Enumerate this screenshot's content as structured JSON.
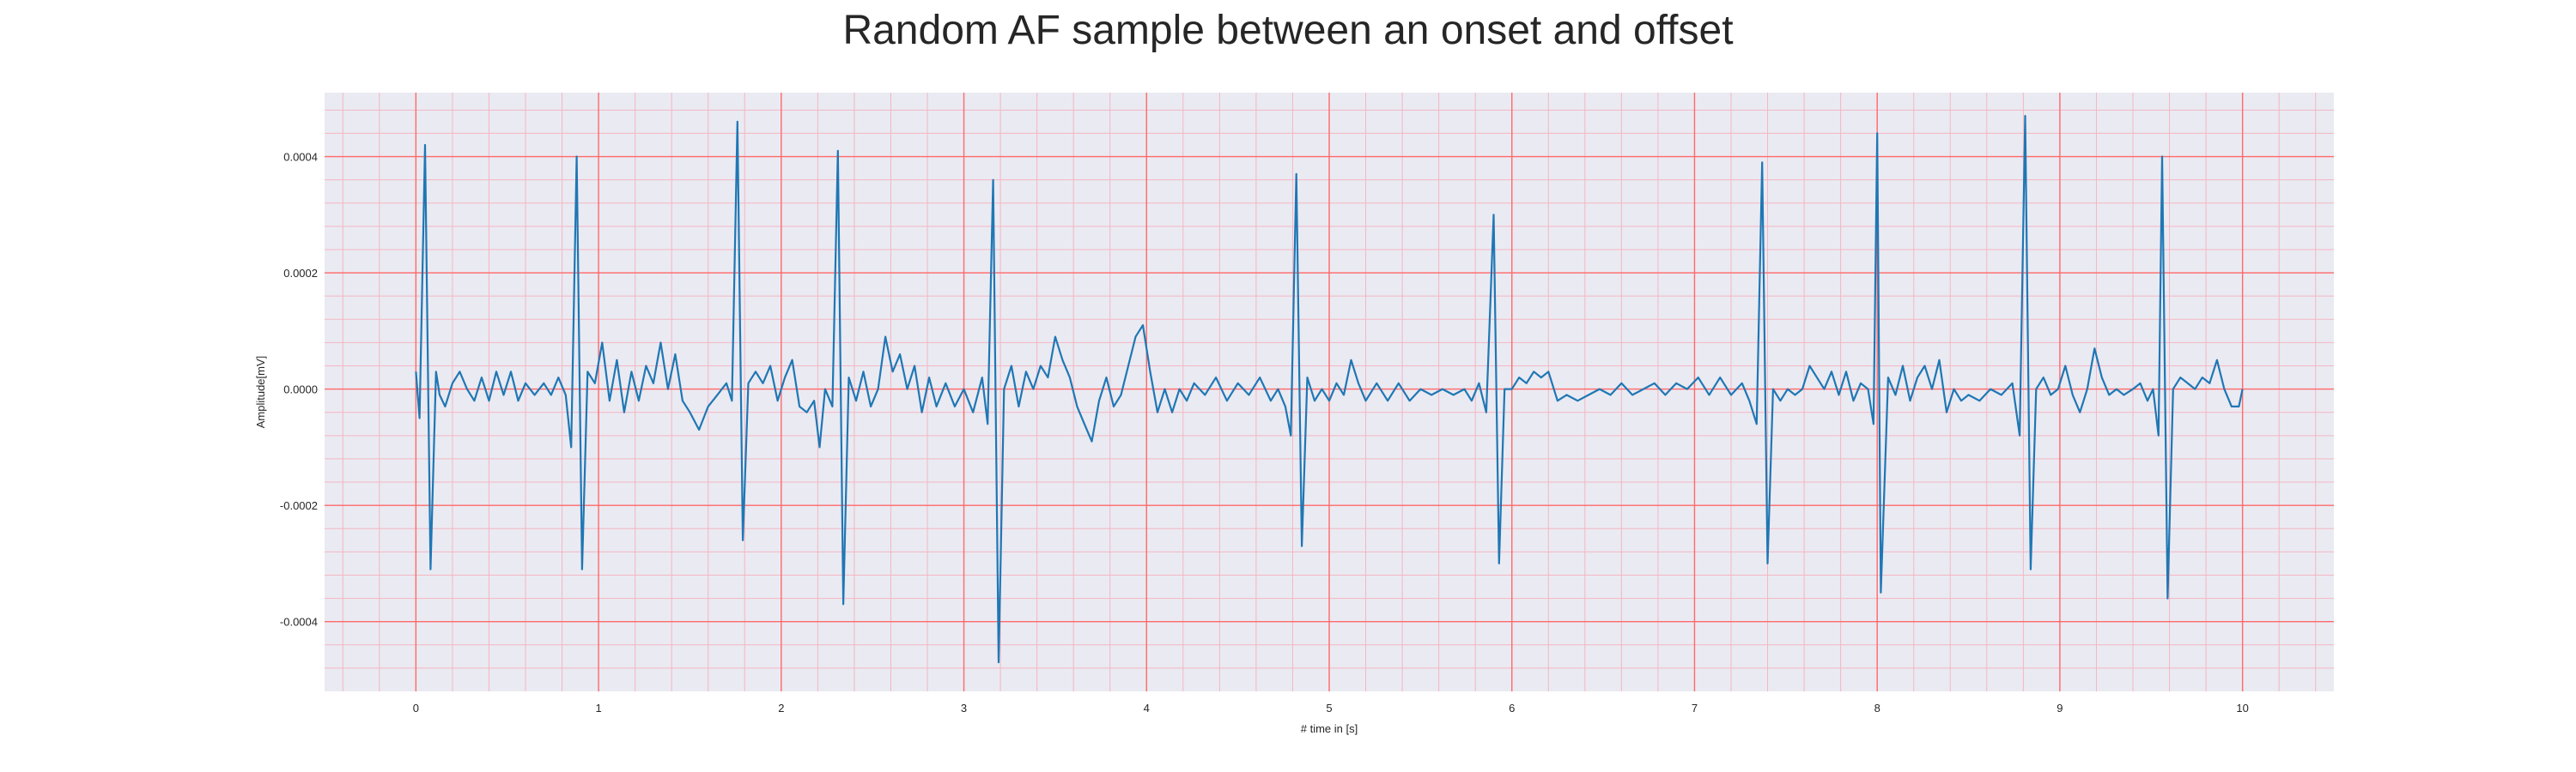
{
  "chart_data": {
    "type": "line",
    "title": "Random AF sample between an onset and offset",
    "xlabel": "# time in [s]",
    "ylabel": "Amplitude[mV]",
    "xlim": [
      -0.5,
      10.5
    ],
    "ylim": [
      -0.00052,
      0.00051
    ],
    "xticks": [
      0,
      1,
      2,
      3,
      4,
      5,
      6,
      7,
      8,
      9,
      10
    ],
    "xtick_labels": [
      "0",
      "1",
      "2",
      "3",
      "4",
      "5",
      "6",
      "7",
      "8",
      "9",
      "10"
    ],
    "yticks": [
      0.0004,
      0.0002,
      0.0,
      -0.0002,
      -0.0004
    ],
    "ytick_labels": [
      "0.0004",
      "0.0002",
      "0.0000",
      "-0.0002",
      "-0.0004"
    ],
    "grid": true,
    "minor_grid": true,
    "colors": {
      "background": "#eaeaf2",
      "major_grid": "#ff6a6a",
      "minor_grid": "#f4b6c2",
      "line": "#1f77b4"
    },
    "series": [
      {
        "points": [
          [
            0.0,
            3e-05
          ],
          [
            0.02,
            -5e-05
          ],
          [
            0.05,
            0.00042
          ],
          [
            0.08,
            -0.00031
          ],
          [
            0.11,
            3e-05
          ],
          [
            0.13,
            -1e-05
          ],
          [
            0.16,
            -3e-05
          ],
          [
            0.2,
            1e-05
          ],
          [
            0.24,
            3e-05
          ],
          [
            0.28,
            0.0
          ],
          [
            0.32,
            -2e-05
          ],
          [
            0.36,
            2e-05
          ],
          [
            0.4,
            -2e-05
          ],
          [
            0.44,
            3e-05
          ],
          [
            0.48,
            -1e-05
          ],
          [
            0.52,
            3e-05
          ],
          [
            0.56,
            -2e-05
          ],
          [
            0.6,
            1e-05
          ],
          [
            0.65,
            -1e-05
          ],
          [
            0.7,
            1e-05
          ],
          [
            0.74,
            -1e-05
          ],
          [
            0.78,
            2e-05
          ],
          [
            0.82,
            -1e-05
          ],
          [
            0.85,
            -0.0001
          ],
          [
            0.88,
            0.0004
          ],
          [
            0.91,
            -0.00031
          ],
          [
            0.94,
            3e-05
          ],
          [
            0.98,
            1e-05
          ],
          [
            1.02,
            8e-05
          ],
          [
            1.06,
            -2e-05
          ],
          [
            1.1,
            5e-05
          ],
          [
            1.14,
            -4e-05
          ],
          [
            1.18,
            3e-05
          ],
          [
            1.22,
            -2e-05
          ],
          [
            1.26,
            4e-05
          ],
          [
            1.3,
            1e-05
          ],
          [
            1.34,
            8e-05
          ],
          [
            1.38,
            0.0
          ],
          [
            1.42,
            6e-05
          ],
          [
            1.46,
            -2e-05
          ],
          [
            1.5,
            -4e-05
          ],
          [
            1.55,
            -7e-05
          ],
          [
            1.6,
            -3e-05
          ],
          [
            1.65,
            -1e-05
          ],
          [
            1.7,
            1e-05
          ],
          [
            1.73,
            -2e-05
          ],
          [
            1.76,
            0.00046
          ],
          [
            1.79,
            -0.00026
          ],
          [
            1.82,
            1e-05
          ],
          [
            1.86,
            3e-05
          ],
          [
            1.9,
            1e-05
          ],
          [
            1.94,
            4e-05
          ],
          [
            1.98,
            -2e-05
          ],
          [
            2.02,
            2e-05
          ],
          [
            2.06,
            5e-05
          ],
          [
            2.1,
            -3e-05
          ],
          [
            2.14,
            -4e-05
          ],
          [
            2.18,
            -2e-05
          ],
          [
            2.21,
            -0.0001
          ],
          [
            2.24,
            0.0
          ],
          [
            2.28,
            -3e-05
          ],
          [
            2.31,
            0.00041
          ],
          [
            2.34,
            -0.00037
          ],
          [
            2.37,
            2e-05
          ],
          [
            2.41,
            -2e-05
          ],
          [
            2.45,
            3e-05
          ],
          [
            2.49,
            -3e-05
          ],
          [
            2.53,
            0.0
          ],
          [
            2.57,
            9e-05
          ],
          [
            2.61,
            3e-05
          ],
          [
            2.65,
            6e-05
          ],
          [
            2.69,
            0.0
          ],
          [
            2.73,
            4e-05
          ],
          [
            2.77,
            -4e-05
          ],
          [
            2.81,
            2e-05
          ],
          [
            2.85,
            -3e-05
          ],
          [
            2.9,
            1e-05
          ],
          [
            2.95,
            -3e-05
          ],
          [
            3.0,
            0.0
          ],
          [
            3.05,
            -4e-05
          ],
          [
            3.1,
            2e-05
          ],
          [
            3.13,
            -6e-05
          ],
          [
            3.16,
            0.00036
          ],
          [
            3.19,
            -0.00047
          ],
          [
            3.22,
            0.0
          ],
          [
            3.26,
            4e-05
          ],
          [
            3.3,
            -3e-05
          ],
          [
            3.34,
            3e-05
          ],
          [
            3.38,
            0.0
          ],
          [
            3.42,
            4e-05
          ],
          [
            3.46,
            2e-05
          ],
          [
            3.5,
            9e-05
          ],
          [
            3.54,
            5e-05
          ],
          [
            3.58,
            2e-05
          ],
          [
            3.62,
            -3e-05
          ],
          [
            3.66,
            -6e-05
          ],
          [
            3.7,
            -9e-05
          ],
          [
            3.74,
            -2e-05
          ],
          [
            3.78,
            2e-05
          ],
          [
            3.82,
            -3e-05
          ],
          [
            3.86,
            -1e-05
          ],
          [
            3.9,
            4e-05
          ],
          [
            3.94,
            9e-05
          ],
          [
            3.98,
            0.00011
          ],
          [
            4.02,
            3e-05
          ],
          [
            4.06,
            -4e-05
          ],
          [
            4.1,
            0.0
          ],
          [
            4.14,
            -4e-05
          ],
          [
            4.18,
            0.0
          ],
          [
            4.22,
            -2e-05
          ],
          [
            4.26,
            1e-05
          ],
          [
            4.32,
            -1e-05
          ],
          [
            4.38,
            2e-05
          ],
          [
            4.44,
            -2e-05
          ],
          [
            4.5,
            1e-05
          ],
          [
            4.56,
            -1e-05
          ],
          [
            4.62,
            2e-05
          ],
          [
            4.68,
            -2e-05
          ],
          [
            4.72,
            0.0
          ],
          [
            4.76,
            -3e-05
          ],
          [
            4.79,
            -8e-05
          ],
          [
            4.82,
            0.00037
          ],
          [
            4.85,
            -0.00027
          ],
          [
            4.88,
            2e-05
          ],
          [
            4.92,
            -2e-05
          ],
          [
            4.96,
            0.0
          ],
          [
            5.0,
            -2e-05
          ],
          [
            5.04,
            1e-05
          ],
          [
            5.08,
            -1e-05
          ],
          [
            5.12,
            5e-05
          ],
          [
            5.16,
            1e-05
          ],
          [
            5.2,
            -2e-05
          ],
          [
            5.26,
            1e-05
          ],
          [
            5.32,
            -2e-05
          ],
          [
            5.38,
            1e-05
          ],
          [
            5.44,
            -2e-05
          ],
          [
            5.5,
            0.0
          ],
          [
            5.56,
            -1e-05
          ],
          [
            5.62,
            0.0
          ],
          [
            5.68,
            -1e-05
          ],
          [
            5.74,
            0.0
          ],
          [
            5.78,
            -2e-05
          ],
          [
            5.82,
            1e-05
          ],
          [
            5.86,
            -4e-05
          ],
          [
            5.9,
            0.0003
          ],
          [
            5.93,
            -0.0003
          ],
          [
            5.96,
            0.0
          ],
          [
            6.0,
            0.0
          ],
          [
            6.04,
            2e-05
          ],
          [
            6.08,
            1e-05
          ],
          [
            6.12,
            3e-05
          ],
          [
            6.16,
            2e-05
          ],
          [
            6.2,
            3e-05
          ],
          [
            6.25,
            -2e-05
          ],
          [
            6.3,
            -1e-05
          ],
          [
            6.36,
            -2e-05
          ],
          [
            6.42,
            -1e-05
          ],
          [
            6.48,
            0.0
          ],
          [
            6.54,
            -1e-05
          ],
          [
            6.6,
            1e-05
          ],
          [
            6.66,
            -1e-05
          ],
          [
            6.72,
            0.0
          ],
          [
            6.78,
            1e-05
          ],
          [
            6.84,
            -1e-05
          ],
          [
            6.9,
            1e-05
          ],
          [
            6.96,
            0.0
          ],
          [
            7.02,
            2e-05
          ],
          [
            7.08,
            -1e-05
          ],
          [
            7.14,
            2e-05
          ],
          [
            7.2,
            -1e-05
          ],
          [
            7.26,
            1e-05
          ],
          [
            7.3,
            -2e-05
          ],
          [
            7.34,
            -6e-05
          ],
          [
            7.37,
            0.00039
          ],
          [
            7.4,
            -0.0003
          ],
          [
            7.43,
            0.0
          ],
          [
            7.47,
            -2e-05
          ],
          [
            7.51,
            0.0
          ],
          [
            7.55,
            -1e-05
          ],
          [
            7.59,
            0.0
          ],
          [
            7.63,
            4e-05
          ],
          [
            7.67,
            2e-05
          ],
          [
            7.71,
            0.0
          ],
          [
            7.75,
            3e-05
          ],
          [
            7.79,
            -1e-05
          ],
          [
            7.83,
            3e-05
          ],
          [
            7.87,
            -2e-05
          ],
          [
            7.91,
            1e-05
          ],
          [
            7.95,
            0.0
          ],
          [
            7.98,
            -6e-05
          ],
          [
            8.0,
            0.00044
          ],
          [
            8.02,
            -0.00035
          ],
          [
            8.06,
            2e-05
          ],
          [
            8.1,
            -1e-05
          ],
          [
            8.14,
            4e-05
          ],
          [
            8.18,
            -2e-05
          ],
          [
            8.22,
            2e-05
          ],
          [
            8.26,
            4e-05
          ],
          [
            8.3,
            0.0
          ],
          [
            8.34,
            5e-05
          ],
          [
            8.38,
            -4e-05
          ],
          [
            8.42,
            0.0
          ],
          [
            8.46,
            -2e-05
          ],
          [
            8.5,
            -1e-05
          ],
          [
            8.56,
            -2e-05
          ],
          [
            8.62,
            0.0
          ],
          [
            8.68,
            -1e-05
          ],
          [
            8.74,
            1e-05
          ],
          [
            8.78,
            -8e-05
          ],
          [
            8.81,
            0.00047
          ],
          [
            8.84,
            -0.00031
          ],
          [
            8.87,
            0.0
          ],
          [
            8.91,
            2e-05
          ],
          [
            8.95,
            -1e-05
          ],
          [
            8.99,
            0.0
          ],
          [
            9.03,
            4e-05
          ],
          [
            9.07,
            -1e-05
          ],
          [
            9.11,
            -4e-05
          ],
          [
            9.15,
            0.0
          ],
          [
            9.19,
            7e-05
          ],
          [
            9.23,
            2e-05
          ],
          [
            9.27,
            -1e-05
          ],
          [
            9.31,
            0.0
          ],
          [
            9.35,
            -1e-05
          ],
          [
            9.4,
            0.0
          ],
          [
            9.44,
            1e-05
          ],
          [
            9.48,
            -2e-05
          ],
          [
            9.51,
            0.0
          ],
          [
            9.54,
            -8e-05
          ],
          [
            9.56,
            0.0004
          ],
          [
            9.59,
            -0.00036
          ],
          [
            9.62,
            0.0
          ],
          [
            9.66,
            2e-05
          ],
          [
            9.7,
            1e-05
          ],
          [
            9.74,
            0.0
          ],
          [
            9.78,
            2e-05
          ],
          [
            9.82,
            1e-05
          ],
          [
            9.86,
            5e-05
          ],
          [
            9.9,
            0.0
          ],
          [
            9.94,
            -3e-05
          ],
          [
            9.98,
            -3e-05
          ],
          [
            10.0,
            0.0
          ]
        ]
      }
    ]
  }
}
